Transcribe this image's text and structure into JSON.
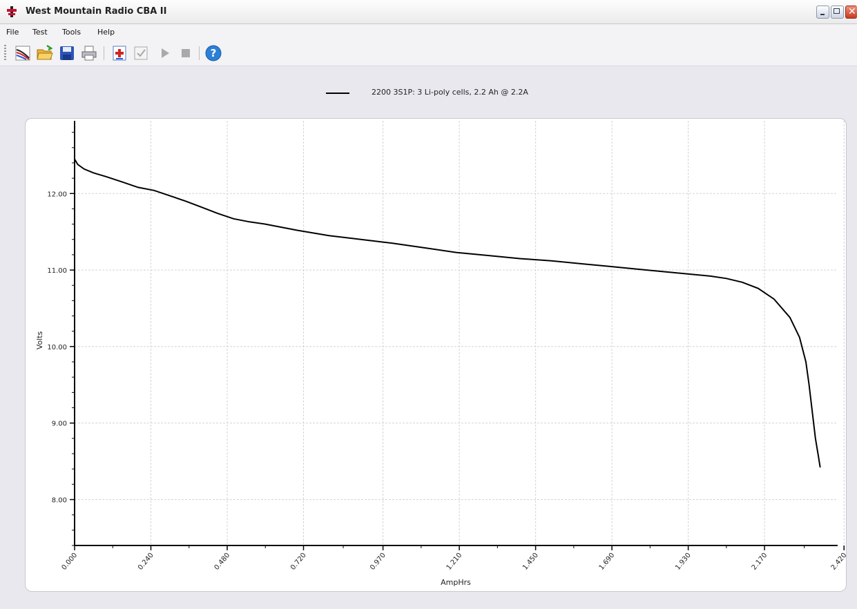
{
  "window": {
    "title": "West Mountain Radio CBA II",
    "icon": "app-logo-icon",
    "controls": [
      "minimize-icon",
      "restore-icon",
      "close-icon"
    ]
  },
  "menu": {
    "items": [
      {
        "label": "File"
      },
      {
        "label": "Test"
      },
      {
        "label": "Tools"
      },
      {
        "label": "Help"
      }
    ]
  },
  "toolbar": {
    "buttons": [
      {
        "name": "new-graph-icon"
      },
      {
        "name": "open-folder-icon"
      },
      {
        "name": "save-icon"
      },
      {
        "name": "print-icon"
      },
      {
        "name": "add-test-icon"
      },
      {
        "name": "checklist-icon"
      },
      {
        "name": "play-icon"
      },
      {
        "name": "stop-icon"
      },
      {
        "name": "help-icon"
      }
    ]
  },
  "legend": {
    "entry": "2200 3S1P: 3 Li-poly cells, 2.2 Ah @ 2.2A",
    "line_color": "#000000"
  },
  "chart_data": {
    "type": "line",
    "xlabel": "AmpHrs",
    "ylabel": "Volts",
    "xlim": [
      0,
      2.4
    ],
    "ylim": [
      7.4,
      12.95
    ],
    "x_ticks": [
      "0.000",
      "0.240",
      "0.480",
      "0.720",
      "0.970",
      "1.210",
      "1.450",
      "1.690",
      "1.930",
      "2.170",
      "2.420"
    ],
    "x_tick_values": [
      0,
      0.24,
      0.48,
      0.72,
      0.97,
      1.21,
      1.45,
      1.69,
      1.93,
      2.17,
      2.42
    ],
    "y_ticks": [
      "8.00",
      "9.00",
      "10.00",
      "11.00",
      "12.00"
    ],
    "y_tick_values": [
      8,
      9,
      10,
      11,
      12
    ],
    "grid": true,
    "series": [
      {
        "name": "2200 3S1P: 3 Li-poly cells, 2.2 Ah @ 2.2A",
        "color": "#000000",
        "x": [
          0.0,
          0.01,
          0.03,
          0.06,
          0.1,
          0.15,
          0.2,
          0.25,
          0.3,
          0.35,
          0.4,
          0.45,
          0.5,
          0.55,
          0.6,
          0.7,
          0.8,
          0.9,
          1.0,
          1.1,
          1.2,
          1.3,
          1.4,
          1.5,
          1.6,
          1.7,
          1.8,
          1.9,
          2.0,
          2.05,
          2.1,
          2.15,
          2.2,
          2.25,
          2.28,
          2.3,
          2.31,
          2.32,
          2.33,
          2.34,
          2.345
        ],
        "y": [
          12.45,
          12.38,
          12.32,
          12.27,
          12.22,
          12.15,
          12.08,
          12.04,
          11.97,
          11.9,
          11.82,
          11.74,
          11.67,
          11.63,
          11.6,
          11.52,
          11.45,
          11.4,
          11.35,
          11.29,
          11.23,
          11.19,
          11.15,
          11.12,
          11.08,
          11.04,
          11.0,
          10.96,
          10.92,
          10.89,
          10.84,
          10.76,
          10.62,
          10.38,
          10.12,
          9.8,
          9.5,
          9.15,
          8.8,
          8.55,
          8.42
        ]
      }
    ]
  }
}
